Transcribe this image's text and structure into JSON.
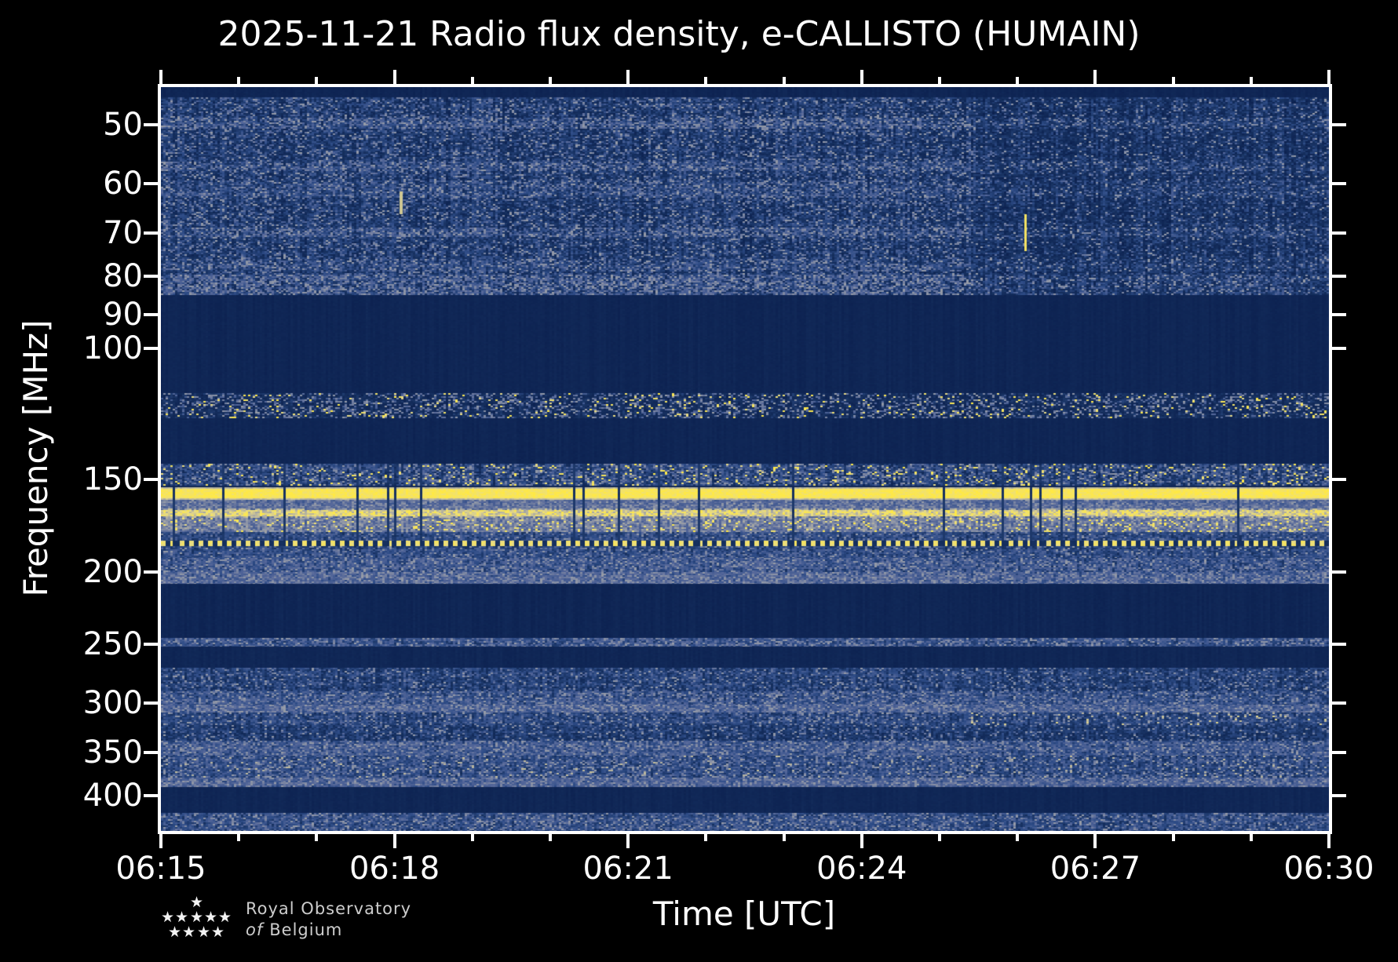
{
  "figure": {
    "title": "2025-11-21 Radio flux density, e-CALLISTO (HUMAIN)",
    "background": "#000000",
    "text_color": "#ffffff"
  },
  "chart_data": {
    "type": "heatmap",
    "subtype": "radio-spectrogram",
    "title": "2025-11-21 Radio flux density, e-CALLISTO (HUMAIN)",
    "xlabel": "Time [UTC]",
    "ylabel": "Frequency [MHz]",
    "x_start": "06:15",
    "x_end": "06:30",
    "x_total_minutes": 15,
    "x_major_tick_every_minutes": 3,
    "x_minor_tick_every_minutes": 1,
    "x_major_ticks": [
      "06:15",
      "06:18",
      "06:21",
      "06:24",
      "06:27",
      "06:30"
    ],
    "y_scale": "log",
    "y_tick_labels": [
      50,
      60,
      70,
      80,
      90,
      100,
      150,
      200,
      250,
      300,
      350,
      400
    ],
    "y_range_mhz": [
      44.5,
      446
    ],
    "grid": false,
    "legend": null,
    "seed": 20251121,
    "colormap_stops": [
      [
        0.0,
        "#0c2150"
      ],
      [
        0.16,
        "#16305f"
      ],
      [
        0.3,
        "#2e4c87"
      ],
      [
        0.44,
        "#56689a"
      ],
      [
        0.56,
        "#949aa8"
      ],
      [
        0.7,
        "#c2bc9c"
      ],
      [
        0.84,
        "#eadd82"
      ],
      [
        1.0,
        "#ffe945"
      ]
    ],
    "segment_boundary_frac": 0.693,
    "segment_right_dim_low_freq": 0.85,
    "segment_right_dim_high_freq": 0.95,
    "bands": [
      {
        "f": [
          44.5,
          45.9
        ],
        "type": "quiet",
        "base": 0.05
      },
      {
        "f": [
          45.9,
          84.8
        ],
        "type": "noise",
        "base": 0.2,
        "amp": 0.15,
        "gray": 0.2,
        "striations": [
          [
            48.9,
            50.6,
            0.42
          ],
          [
            56.0,
            57.6,
            0.38
          ],
          [
            59.5,
            62.6,
            0.3
          ],
          [
            68.8,
            70.8,
            0.38
          ],
          [
            75.9,
            78.9,
            0.3
          ],
          [
            79.6,
            84.8,
            0.48
          ]
        ]
      },
      {
        "f": [
          84.8,
          114.9
        ],
        "type": "quiet",
        "base": 0.05
      },
      {
        "f": [
          114.9,
          124.2
        ],
        "type": "speckle",
        "base": 0.13,
        "amp": 0.1,
        "gray": 0.28,
        "yellow": 0.05
      },
      {
        "f": [
          124.2,
          143.0
        ],
        "type": "quiet",
        "base": 0.05
      },
      {
        "f": [
          143.0,
          152.7
        ],
        "type": "noise",
        "base": 0.24,
        "amp": 0.14,
        "gray": 0.3,
        "yellow": 0.07,
        "gaps": true
      },
      {
        "f": [
          153.8,
          159.9
        ],
        "type": "line",
        "base": 0.95,
        "amp": 0.07,
        "gaps": true
      },
      {
        "f": [
          159.9,
          164.2
        ],
        "type": "noise",
        "base": 0.45,
        "amp": 0.1,
        "gray": 0.5,
        "gaps": true
      },
      {
        "f": [
          164.2,
          169.1
        ],
        "type": "line",
        "base": 0.8,
        "amp": 0.2,
        "gaps": true
      },
      {
        "f": [
          169.1,
          176.7
        ],
        "type": "noise",
        "base": 0.5,
        "amp": 0.12,
        "gray": 0.35,
        "yellow": 0.12,
        "gaps": true
      },
      {
        "f": [
          176.7,
          181.4
        ],
        "type": "noise",
        "base": 0.27,
        "amp": 0.12,
        "gray": 0.18,
        "gaps": true
      },
      {
        "f": [
          181.4,
          184.4
        ],
        "type": "dashed",
        "base": 0.88,
        "dash": [
          2,
          2
        ],
        "gaps": true
      },
      {
        "f": [
          184.4,
          191.4
        ],
        "type": "noise",
        "base": 0.27,
        "amp": 0.12,
        "gray": 0.22
      },
      {
        "f": [
          191.4,
          200.0
        ],
        "type": "noise",
        "base": 0.32,
        "amp": 0.13,
        "gray": 0.38
      },
      {
        "f": [
          200.0,
          207.4
        ],
        "type": "noise",
        "base": 0.4,
        "amp": 0.13,
        "gray": 0.52
      },
      {
        "f": [
          207.4,
          245.3
        ],
        "type": "quiet",
        "base": 0.05
      },
      {
        "f": [
          245.3,
          251.9
        ],
        "type": "noise",
        "base": 0.3,
        "amp": 0.12,
        "gray": 0.42
      },
      {
        "f": [
          251.9,
          269.1
        ],
        "type": "quiet",
        "base": 0.06
      },
      {
        "f": [
          269.1,
          289.4
        ],
        "type": "noise",
        "base": 0.24,
        "amp": 0.13,
        "gray": 0.18
      },
      {
        "f": [
          289.4,
          301.6
        ],
        "type": "noise",
        "base": 0.3,
        "amp": 0.13,
        "gray": 0.33
      },
      {
        "f": [
          301.6,
          309.0
        ],
        "type": "noise",
        "base": 0.4,
        "amp": 0.12,
        "gray": 0.52
      },
      {
        "f": [
          309.0,
          321.3
        ],
        "type": "noise",
        "base": 0.26,
        "amp": 0.12,
        "gray": 0.22,
        "tan_right": 0.05
      },
      {
        "f": [
          321.3,
          337.3
        ],
        "type": "noise",
        "base": 0.22,
        "amp": 0.12,
        "gray": 0.14
      },
      {
        "f": [
          337.3,
          353.3
        ],
        "type": "noise",
        "base": 0.33,
        "amp": 0.12,
        "gray": 0.42
      },
      {
        "f": [
          353.3,
          378.1
        ],
        "type": "noise",
        "base": 0.28,
        "amp": 0.12,
        "gray": 0.28,
        "tan": 0.03
      },
      {
        "f": [
          378.1,
          389.2
        ],
        "type": "noise",
        "base": 0.38,
        "amp": 0.12,
        "gray": 0.5
      },
      {
        "f": [
          389.2,
          421.9
        ],
        "type": "quiet",
        "base": 0.06
      },
      {
        "f": [
          421.9,
          446.0
        ],
        "type": "noise",
        "base": 0.28,
        "amp": 0.12,
        "gray": 0.32
      }
    ],
    "features": [
      {
        "t_frac": 0.204,
        "f": [
          61.5,
          66.0
        ],
        "w": 4,
        "value": 0.75
      },
      {
        "t_frac": 0.739,
        "f": [
          66.0,
          74.0
        ],
        "w": 3,
        "value": 0.92
      }
    ]
  },
  "branding": {
    "line1": "Royal Observatory",
    "line2_italic": "of",
    "line2_rest": "Belgium",
    "star_icon": "★",
    "star_color": "#f2f2f2",
    "text_color": "#cdcdcd"
  }
}
